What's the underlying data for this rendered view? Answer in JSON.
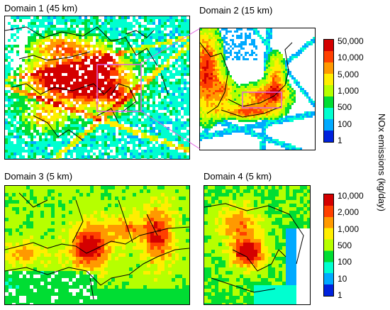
{
  "panels": [
    {
      "id": "d1",
      "title": "Domain 1 (45 km)"
    },
    {
      "id": "d2",
      "title": "Domain 2 (15 km)"
    },
    {
      "id": "d3",
      "title": "Domain 3 (5 km)"
    },
    {
      "id": "d4",
      "title": "Domain 4 (5 km)"
    }
  ],
  "colorbar_top": {
    "ticks": [
      "50,000",
      "10,000",
      "5,000",
      "1,000",
      "500",
      "100",
      "1"
    ]
  },
  "colorbar_bottom": {
    "ticks": [
      "10,000",
      "2,000",
      "1,000",
      "500",
      "100",
      "10",
      "1"
    ]
  },
  "colorbar_colors": [
    "#d40000",
    "#ff4000",
    "#ff9900",
    "#ffee00",
    "#b6ff00",
    "#00dd33",
    "#00ffd0",
    "#00aaff",
    "#0022dd"
  ],
  "axis_label": "NOx emissions (kg/day)",
  "zoom_box_color": "#e060e0"
}
